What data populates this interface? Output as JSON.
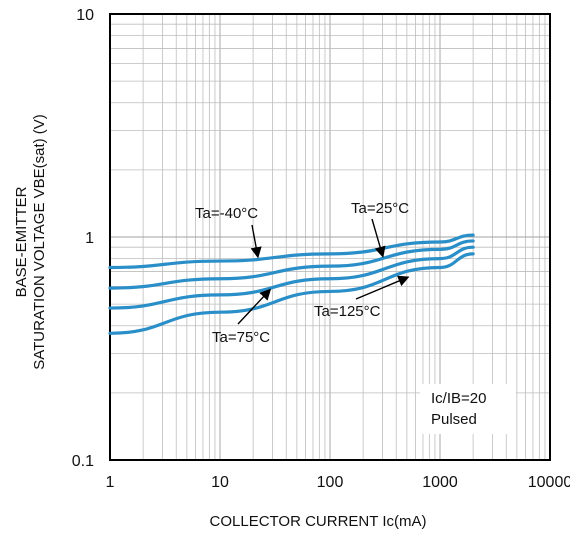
{
  "chart_data": {
    "type": "line",
    "x_scale": "log",
    "y_scale": "log",
    "xlim": [
      1,
      10000
    ],
    "ylim": [
      0.1,
      10
    ],
    "grid": true,
    "xlabel": "COLLECTOR CURRENT  Ic(mA)",
    "ylabel_line1": "BASE-EMITTER",
    "ylabel_line2": "SATURATION VOLTAGE  VBE(sat)  (V)",
    "x_ticks": [
      "1",
      "10",
      "100",
      "1000",
      "10000"
    ],
    "y_ticks": [
      "0.1",
      "1",
      "10"
    ],
    "conditions": [
      "Ic/IB=20",
      "Pulsed"
    ],
    "line_color": "#2a8fc8",
    "series": [
      {
        "name": "Ta=-40°C",
        "x": [
          1,
          10,
          100,
          1000,
          2000
        ],
        "y": [
          0.73,
          0.78,
          0.84,
          0.95,
          1.02
        ]
      },
      {
        "name": "Ta=25°C",
        "x": [
          1,
          10,
          100,
          1000,
          2000
        ],
        "y": [
          0.59,
          0.65,
          0.74,
          0.88,
          0.96
        ]
      },
      {
        "name": "Ta=75°C",
        "x": [
          1,
          10,
          100,
          1000,
          2000
        ],
        "y": [
          0.48,
          0.55,
          0.65,
          0.8,
          0.9
        ]
      },
      {
        "name": "Ta=125°C",
        "x": [
          1,
          10,
          100,
          1000,
          2000
        ],
        "y": [
          0.37,
          0.46,
          0.57,
          0.73,
          0.84
        ]
      }
    ]
  }
}
